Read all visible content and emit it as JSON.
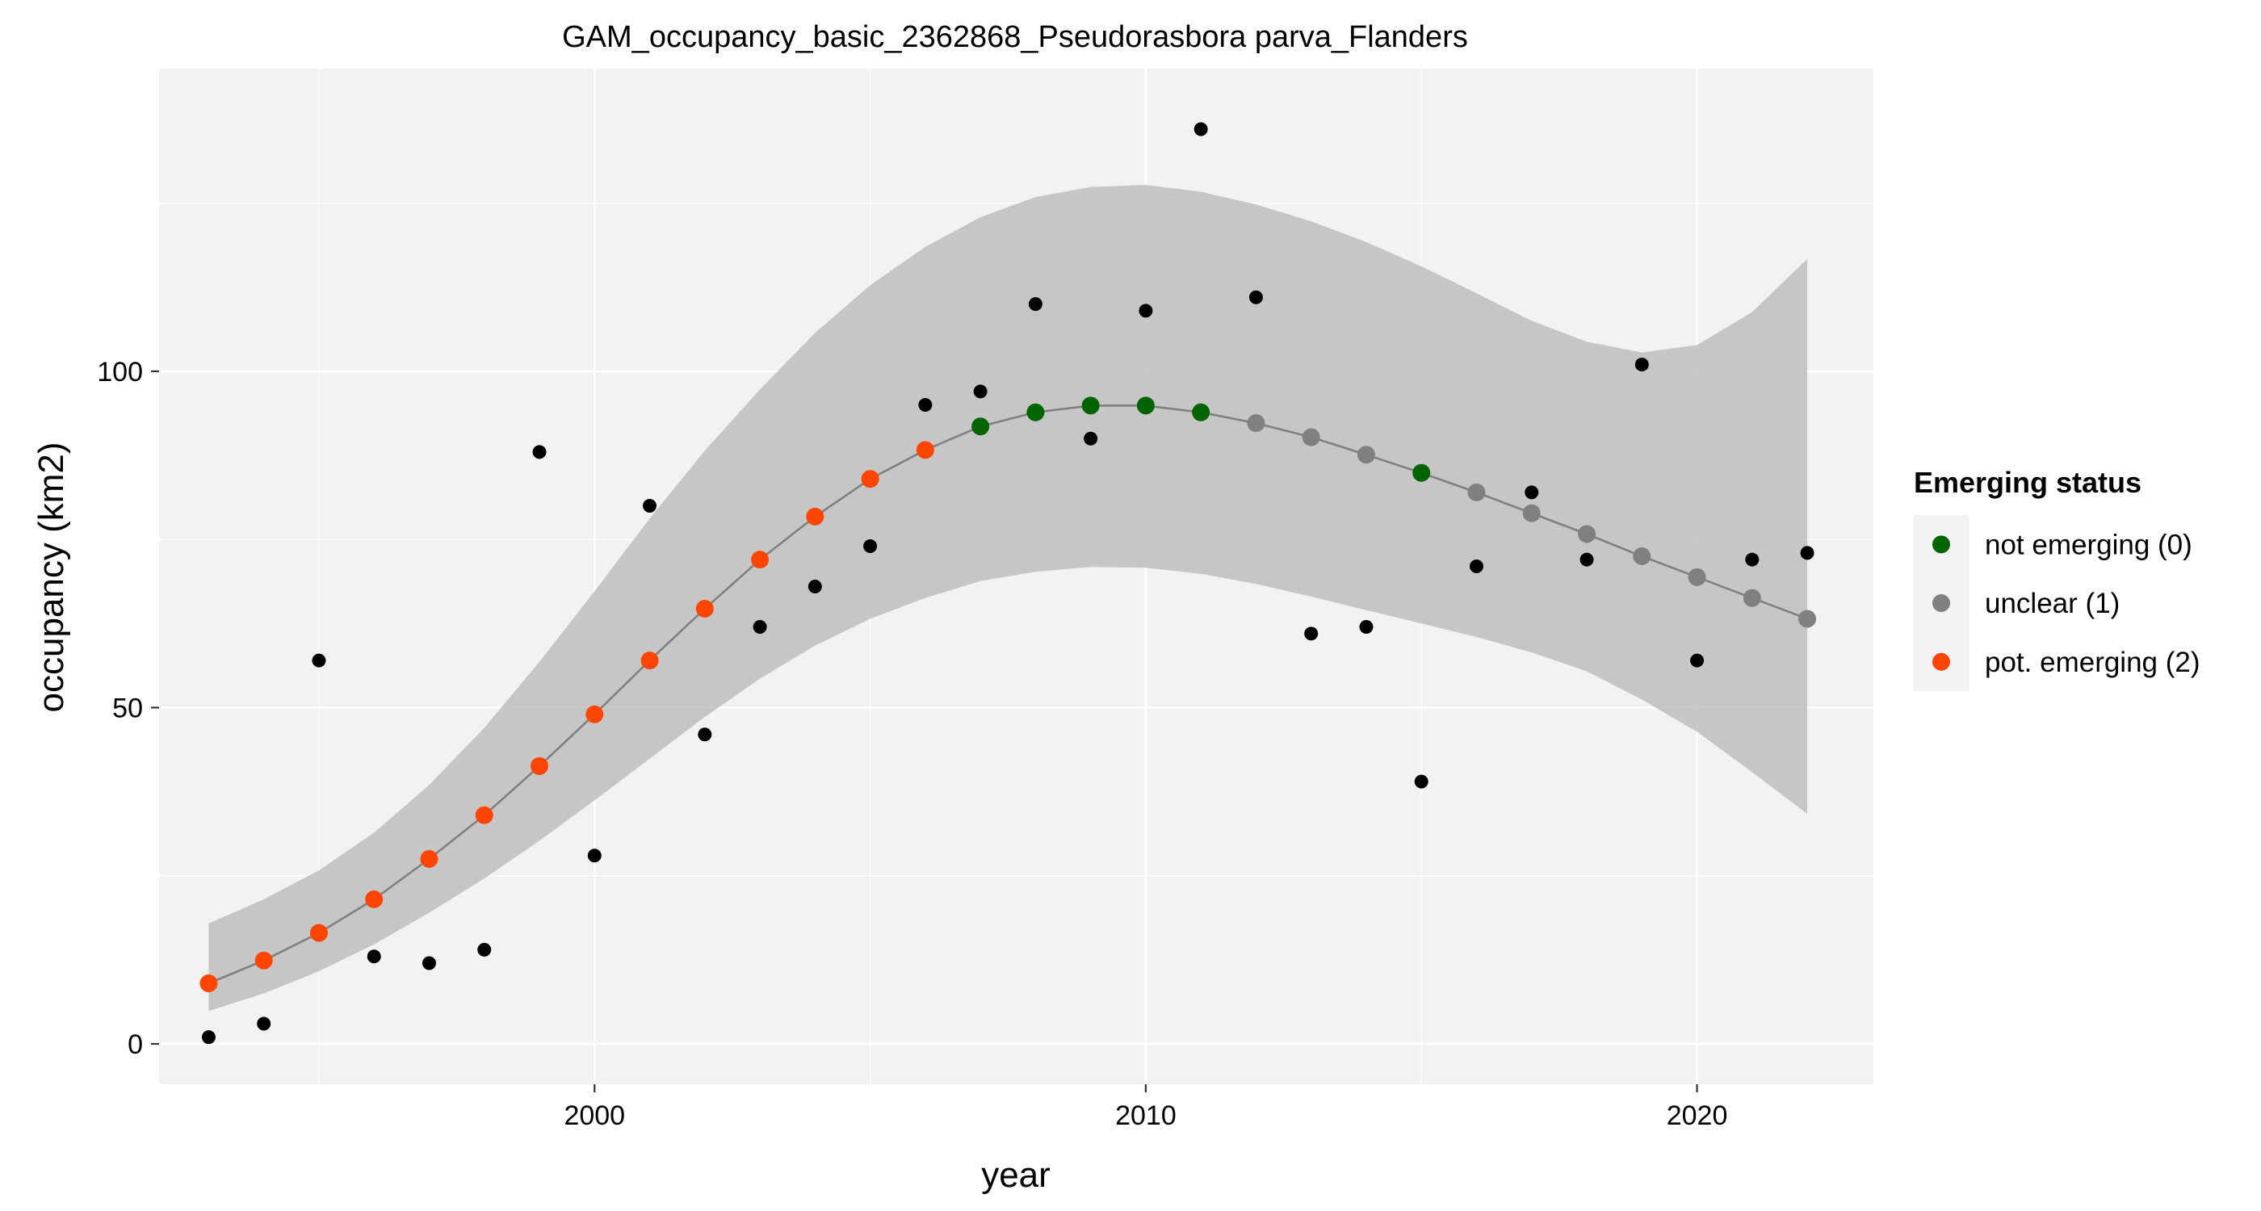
{
  "chart_data": {
    "type": "scatter",
    "title": "GAM_occupancy_basic_2362868_Pseudorasbora parva_Flanders",
    "xlabel": "year",
    "ylabel": "occupancy (km2)",
    "xlim": [
      1992.1,
      2023.2
    ],
    "ylim": [
      -6,
      145
    ],
    "x_ticks": [
      2000,
      2010,
      2020
    ],
    "y_ticks": [
      0,
      50,
      100
    ],
    "grid": true,
    "panel_background": "#f2f2f2",
    "grid_color": "#ffffff",
    "legend": {
      "title": "Emerging status",
      "position": "right",
      "entries": [
        {
          "label": "not emerging (0)",
          "color": "#006400"
        },
        {
          "label": "unclear (1)",
          "color": "#808080"
        },
        {
          "label": "pot. emerging (2)",
          "color": "#ff4500"
        }
      ]
    },
    "observed": {
      "color": "#000000",
      "x": [
        1993,
        1994,
        1995,
        1996,
        1997,
        1998,
        1999,
        2000,
        2001,
        2002,
        2003,
        2004,
        2005,
        2006,
        2007,
        2008,
        2009,
        2010,
        2011,
        2012,
        2013,
        2014,
        2015,
        2016,
        2017,
        2018,
        2019,
        2020,
        2021,
        2022
      ],
      "y": [
        1,
        3,
        57,
        13,
        12,
        14,
        88,
        28,
        80,
        46,
        62,
        68,
        74,
        95,
        97,
        110,
        90,
        109,
        136,
        111,
        61,
        62,
        39,
        71,
        82,
        72,
        101,
        57,
        72,
        73
      ]
    },
    "fitted": {
      "line_color": "#808080",
      "ribbon_color": "#bebebe",
      "x": [
        1993,
        1994,
        1995,
        1996,
        1997,
        1998,
        1999,
        2000,
        2001,
        2002,
        2003,
        2004,
        2005,
        2006,
        2007,
        2008,
        2009,
        2010,
        2011,
        2012,
        2013,
        2014,
        2015,
        2016,
        2017,
        2018,
        2019,
        2020,
        2021,
        2022
      ],
      "y": [
        9,
        12.4,
        16.5,
        21.5,
        27.5,
        34,
        41.3,
        49,
        57,
        64.7,
        72,
        78.4,
        84,
        88.3,
        91.8,
        93.9,
        94.9,
        94.9,
        93.9,
        92.3,
        90.2,
        87.6,
        84.9,
        82,
        78.9,
        75.8,
        72.5,
        69.4,
        66.3,
        63.2
      ],
      "lower": [
        4.9,
        7.5,
        10.8,
        14.8,
        19.5,
        24.6,
        30.2,
        36.2,
        42.4,
        48.6,
        54.3,
        59.2,
        63.2,
        66.3,
        68.8,
        70.2,
        70.9,
        70.8,
        69.9,
        68.4,
        66.5,
        64.5,
        62.5,
        60.5,
        58.2,
        55.4,
        51.2,
        46.4,
        40.4,
        34.2
      ],
      "upper": [
        17.9,
        21.5,
        25.8,
        31.4,
        38.5,
        47,
        56.8,
        67.3,
        78.1,
        88.2,
        97.3,
        105.7,
        112.8,
        118.5,
        122.9,
        125.9,
        127.4,
        127.7,
        126.7,
        124.8,
        122.3,
        119.2,
        115.6,
        111.6,
        107.5,
        104.4,
        102.8,
        103.9,
        108.8,
        116.7
      ],
      "status": [
        2,
        2,
        2,
        2,
        2,
        2,
        2,
        2,
        2,
        2,
        2,
        2,
        2,
        2,
        0,
        0,
        0,
        0,
        0,
        1,
        1,
        1,
        0,
        1,
        1,
        1,
        1,
        1,
        1,
        1
      ]
    }
  }
}
